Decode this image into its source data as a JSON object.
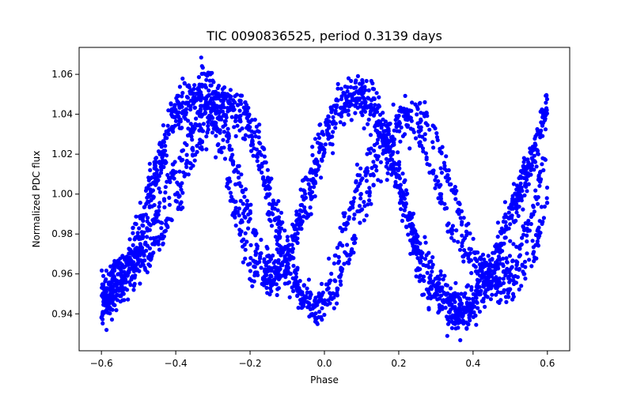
{
  "chart_data": {
    "type": "scatter",
    "title": "TIC 0090836525, period 0.3139 days",
    "xlabel": "Phase",
    "ylabel": "Normalized PDC flux",
    "xlim": [
      -0.66,
      0.66
    ],
    "ylim": [
      0.9215,
      1.0735
    ],
    "xticks": [
      -0.6,
      -0.4,
      -0.2,
      0.0,
      0.2,
      0.4,
      0.6
    ],
    "xtick_labels": [
      "−0.6",
      "−0.4",
      "−0.2",
      "0.0",
      "0.2",
      "0.4",
      "0.6"
    ],
    "yticks": [
      0.94,
      0.96,
      0.98,
      1.0,
      1.02,
      1.04,
      1.06
    ],
    "ytick_labels": [
      "0.94",
      "0.96",
      "0.98",
      "1.00",
      "1.02",
      "1.04",
      "1.06"
    ],
    "grid": false,
    "marker_color": "#0000ff",
    "series": [
      {
        "x": [
          -0.6,
          -0.55,
          -0.5,
          -0.45,
          -0.4,
          -0.35,
          -0.32,
          -0.28,
          -0.24,
          -0.2,
          -0.16,
          -0.12,
          -0.1,
          -0.05,
          0.0,
          0.05,
          0.09,
          0.12,
          0.16,
          0.2,
          0.25,
          0.3,
          0.35,
          0.38,
          0.42,
          0.46,
          0.5,
          0.55,
          0.6
        ],
        "y": [
          0.948,
          0.954,
          0.975,
          1.008,
          1.038,
          1.05,
          1.058,
          1.045,
          1.012,
          0.985,
          0.962,
          0.958,
          0.962,
          0.992,
          1.025,
          1.044,
          1.05,
          1.045,
          1.033,
          1.01,
          0.975,
          0.955,
          0.944,
          0.94,
          0.948,
          0.965,
          0.987,
          1.012,
          1.045
        ]
      },
      {
        "x": [
          -0.6,
          -0.55,
          -0.5,
          -0.45,
          -0.4,
          -0.36,
          -0.32,
          -0.28,
          -0.24,
          -0.2,
          -0.15,
          -0.1,
          -0.05,
          0.0,
          0.05,
          0.1,
          0.14,
          0.18,
          0.22,
          0.26,
          0.3,
          0.35,
          0.4,
          0.45,
          0.5,
          0.55,
          0.6
        ],
        "y": [
          0.95,
          0.96,
          0.982,
          1.018,
          1.043,
          1.05,
          1.046,
          1.025,
          0.99,
          0.964,
          0.956,
          0.968,
          1.003,
          1.033,
          1.048,
          1.05,
          1.04,
          1.016,
          0.99,
          0.962,
          0.946,
          0.938,
          0.945,
          0.965,
          0.99,
          1.015,
          1.04
        ]
      },
      {
        "x": [
          -0.6,
          -0.55,
          -0.5,
          -0.45,
          -0.4,
          -0.35,
          -0.3,
          -0.26,
          -0.22,
          -0.18,
          -0.14,
          -0.1,
          -0.06,
          -0.02,
          0.02,
          0.06,
          0.1,
          0.14,
          0.18,
          0.22,
          0.26,
          0.3,
          0.34,
          0.38,
          0.42,
          0.46,
          0.5,
          0.55,
          0.6
        ],
        "y": [
          0.955,
          0.96,
          0.97,
          0.99,
          1.013,
          1.035,
          1.048,
          1.043,
          1.035,
          1.02,
          0.99,
          0.962,
          0.948,
          0.945,
          0.96,
          0.985,
          1.008,
          1.025,
          1.035,
          1.038,
          1.028,
          1.005,
          0.985,
          0.97,
          0.96,
          0.958,
          0.962,
          0.985,
          1.02
        ]
      },
      {
        "x": [
          -0.6,
          -0.55,
          -0.5,
          -0.45,
          -0.4,
          -0.35,
          -0.3,
          -0.26,
          -0.22,
          -0.18,
          -0.14,
          -0.1,
          -0.06,
          -0.02,
          0.02,
          0.06,
          0.1,
          0.14,
          0.18,
          0.22,
          0.26,
          0.3,
          0.34,
          0.38,
          0.42,
          0.46,
          0.5,
          0.55,
          0.6
        ],
        "y": [
          0.94,
          0.95,
          0.96,
          0.975,
          0.995,
          1.02,
          1.04,
          1.046,
          1.045,
          1.03,
          1.0,
          0.97,
          0.95,
          0.94,
          0.948,
          0.967,
          0.99,
          1.012,
          1.028,
          1.04,
          1.042,
          1.028,
          1.005,
          0.982,
          0.965,
          0.955,
          0.952,
          0.965,
          0.995
        ]
      }
    ],
    "series_spread": [
      0.005,
      0.005,
      0.004,
      0.004
    ],
    "points_per_series": [
      900,
      900,
      700,
      700
    ]
  }
}
